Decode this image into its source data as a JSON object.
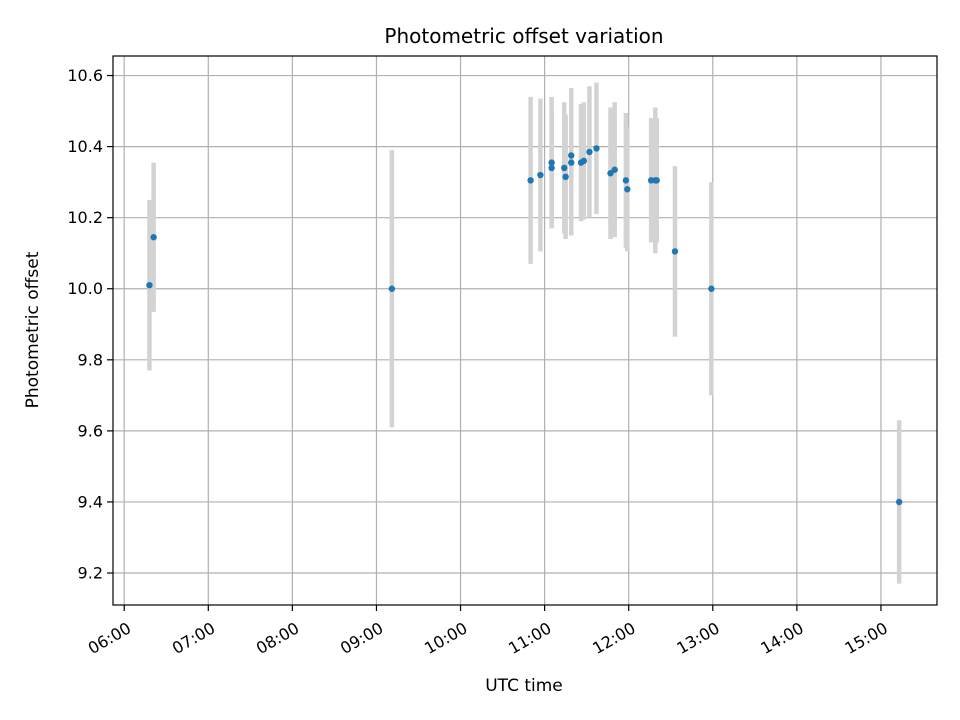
{
  "chart_data": {
    "type": "scatter",
    "title": "Photometric offset variation",
    "xlabel": "UTC time",
    "ylabel": "Photometric offset",
    "x_axis_type": "time",
    "xlim": [
      "05:52",
      "15:40"
    ],
    "ylim": [
      9.11,
      10.655
    ],
    "x_ticks": [
      "06:00",
      "07:00",
      "08:00",
      "09:00",
      "10:00",
      "11:00",
      "12:00",
      "13:00",
      "14:00",
      "15:00"
    ],
    "y_ticks": [
      9.2,
      9.4,
      9.6,
      9.8,
      10.0,
      10.2,
      10.4,
      10.6
    ],
    "grid": true,
    "marker_color": "#1f77b4",
    "errorbar_color": "#d3d3d3",
    "points": [
      {
        "x": "06:18",
        "y": 10.01,
        "yerr": 0.24
      },
      {
        "x": "06:21",
        "y": 10.145,
        "yerr": 0.21
      },
      {
        "x": "09:11",
        "y": 10.0,
        "yerr": 0.39
      },
      {
        "x": "10:50",
        "y": 10.305,
        "yerr": 0.235
      },
      {
        "x": "10:57",
        "y": 10.32,
        "yerr": 0.215
      },
      {
        "x": "11:05",
        "y": 10.355,
        "yerr": 0.185
      },
      {
        "x": "11:05",
        "y": 10.34,
        "yerr": 0.16
      },
      {
        "x": "11:14",
        "y": 10.34,
        "yerr": 0.185
      },
      {
        "x": "11:15",
        "y": 10.315,
        "yerr": 0.175
      },
      {
        "x": "11:19",
        "y": 10.375,
        "yerr": 0.19
      },
      {
        "x": "11:19",
        "y": 10.355,
        "yerr": 0.205
      },
      {
        "x": "11:26",
        "y": 10.355,
        "yerr": 0.165
      },
      {
        "x": "11:28",
        "y": 10.36,
        "yerr": 0.165
      },
      {
        "x": "11:32",
        "y": 10.385,
        "yerr": 0.185
      },
      {
        "x": "11:37",
        "y": 10.395,
        "yerr": 0.185
      },
      {
        "x": "11:47",
        "y": 10.325,
        "yerr": 0.185
      },
      {
        "x": "11:50",
        "y": 10.335,
        "yerr": 0.19
      },
      {
        "x": "11:58",
        "y": 10.305,
        "yerr": 0.19
      },
      {
        "x": "11:59",
        "y": 10.28,
        "yerr": 0.175
      },
      {
        "x": "12:16",
        "y": 10.305,
        "yerr": 0.175
      },
      {
        "x": "12:19",
        "y": 10.305,
        "yerr": 0.205
      },
      {
        "x": "12:20",
        "y": 10.305,
        "yerr": 0.175
      },
      {
        "x": "12:33",
        "y": 10.105,
        "yerr": 0.24
      },
      {
        "x": "12:59",
        "y": 10.0,
        "yerr": 0.3
      },
      {
        "x": "15:13",
        "y": 9.4,
        "yerr": 0.23
      }
    ]
  }
}
